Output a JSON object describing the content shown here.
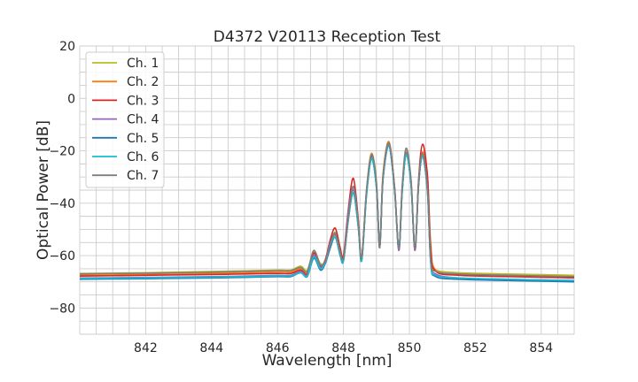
{
  "chart_data": {
    "type": "line",
    "title": "D4372 V20113 Reception Test",
    "xlabel": "Wavelength [nm]",
    "ylabel": "Optical Power [dB]",
    "xlim": [
      840,
      855
    ],
    "ylim": [
      -90,
      20
    ],
    "xticks": [
      842,
      844,
      846,
      848,
      850,
      852,
      854
    ],
    "yticks": [
      -80,
      -60,
      -40,
      -20,
      0,
      20
    ],
    "grid": true,
    "grid_minor_step": {
      "x": 0.5,
      "y": 5
    },
    "legend_position": "top-left",
    "x": [
      840,
      842,
      844,
      845,
      846,
      846.4,
      846.7,
      846.9,
      847.1,
      847.3,
      847.45,
      847.6,
      847.75,
      847.9,
      848.0,
      848.15,
      848.3,
      848.45,
      848.55,
      848.7,
      848.85,
      849.0,
      849.1,
      849.2,
      849.38,
      849.55,
      849.68,
      849.78,
      849.9,
      850.05,
      850.17,
      850.28,
      850.4,
      850.55,
      850.65,
      850.8,
      851.5,
      853,
      855
    ],
    "series": [
      {
        "name": "Ch. 1",
        "color": "#bcbd22",
        "values": [
          -66.8,
          -66.5,
          -66,
          -65.8,
          -65.5,
          -65.5,
          -64,
          -65.5,
          -58.5,
          -63,
          -62,
          -56,
          -51,
          -58,
          -61,
          -45,
          -34,
          -48,
          -61,
          -35,
          -21,
          -32,
          -57,
          -30,
          -17.5,
          -35,
          -58,
          -35,
          -20,
          -32,
          -58,
          -32,
          -21,
          -35,
          -62,
          -65.5,
          -66.5,
          -67,
          -67.5
        ]
      },
      {
        "name": "Ch. 2",
        "color": "#ff7f0e",
        "values": [
          -67.5,
          -67.2,
          -66.8,
          -66.5,
          -66.2,
          -66.2,
          -65,
          -66.5,
          -59.5,
          -64,
          -62.5,
          -57,
          -52,
          -59,
          -61.5,
          -46,
          -36,
          -49,
          -61,
          -36,
          -21,
          -33,
          -56,
          -29,
          -16.5,
          -34,
          -57,
          -34,
          -20.5,
          -32,
          -58,
          -33,
          -20.5,
          -30,
          -56,
          -65.5,
          -67,
          -67.5,
          -68
        ]
      },
      {
        "name": "Ch. 3",
        "color": "#d62728",
        "values": [
          -67.8,
          -67.5,
          -67.2,
          -67,
          -66.8,
          -66.8,
          -65.5,
          -67,
          -59,
          -64,
          -61.5,
          -54,
          -49.5,
          -57,
          -60,
          -42,
          -30.5,
          -46,
          -61,
          -36,
          -22,
          -33,
          -57,
          -30,
          -17,
          -34,
          -58,
          -35,
          -21,
          -32,
          -58,
          -31,
          -17.5,
          -30,
          -58,
          -66,
          -67.5,
          -68,
          -68.5
        ]
      },
      {
        "name": "Ch. 4",
        "color": "#9467bd",
        "values": [
          -68.5,
          -68.3,
          -68,
          -67.8,
          -67.5,
          -67.5,
          -66,
          -67.5,
          -60,
          -64.5,
          -62,
          -55,
          -52,
          -59,
          -62,
          -43,
          -35,
          -47,
          -62,
          -36,
          -22.5,
          -34,
          -57,
          -31,
          -18,
          -35,
          -58,
          -36,
          -21,
          -33,
          -58,
          -33,
          -22,
          -35,
          -62,
          -67,
          -68.5,
          -69,
          -69.5
        ]
      },
      {
        "name": "Ch. 5",
        "color": "#1f77b4",
        "values": [
          -69,
          -68.8,
          -68.5,
          -68.3,
          -68,
          -68,
          -66.5,
          -68,
          -61,
          -65.5,
          -63,
          -57,
          -53,
          -60,
          -62,
          -46,
          -36,
          -49,
          -62,
          -37,
          -23,
          -34,
          -56,
          -31,
          -18,
          -35,
          -57,
          -36,
          -21.5,
          -33,
          -57,
          -33,
          -22,
          -36,
          -63,
          -68,
          -69,
          -69.5,
          -70
        ]
      },
      {
        "name": "Ch. 6",
        "color": "#17becf",
        "values": [
          -68.7,
          -68.5,
          -68.2,
          -68,
          -67.7,
          -67.7,
          -66.5,
          -67.8,
          -60.5,
          -65,
          -62.5,
          -56,
          -53,
          -59.5,
          -62,
          -46,
          -36,
          -49,
          -62,
          -37,
          -23,
          -34,
          -56,
          -31,
          -18,
          -35,
          -57,
          -36,
          -21.5,
          -33,
          -57,
          -33,
          -22,
          -36,
          -63,
          -67.5,
          -68.5,
          -69,
          -69.5
        ]
      },
      {
        "name": "Ch. 7",
        "color": "#7f7f7f",
        "values": [
          -67,
          -66.7,
          -66.3,
          -66,
          -65.7,
          -65.7,
          -64.5,
          -66,
          -58,
          -63.5,
          -62,
          -55.5,
          -51.5,
          -58.5,
          -61,
          -45,
          -33.5,
          -47,
          -61,
          -35,
          -21.5,
          -32,
          -57,
          -30,
          -17,
          -34,
          -57,
          -34,
          -19,
          -31,
          -57,
          -32,
          -21,
          -35,
          -62,
          -66,
          -67,
          -67.5,
          -68
        ]
      }
    ]
  }
}
